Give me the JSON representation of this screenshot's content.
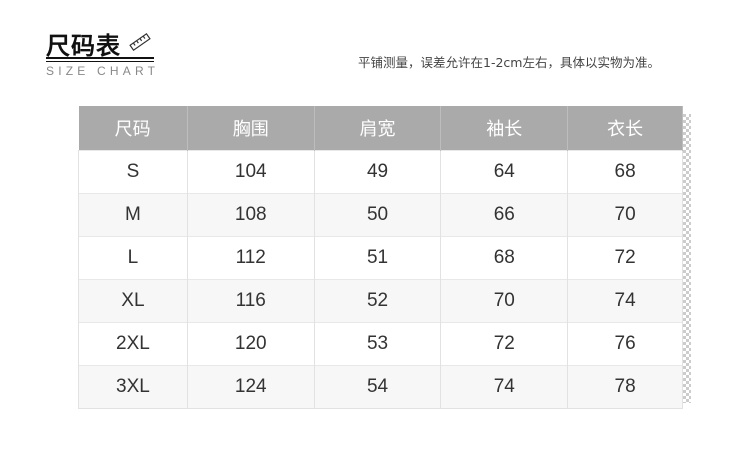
{
  "header": {
    "title": "尺码表",
    "subtitle": "SIZE CHART",
    "ruler_icon": "ruler-icon",
    "note": "平铺测量，误差允许在1-2cm左右，具体以实物为准。"
  },
  "colors": {
    "header_bg": "#aaaaaa",
    "header_text": "#ffffff",
    "row_alt": "#f7f7f7"
  },
  "table": {
    "columns": [
      "尺码",
      "胸围",
      "肩宽",
      "袖长",
      "衣长"
    ],
    "rows": [
      [
        "S",
        "104",
        "49",
        "64",
        "68"
      ],
      [
        "M",
        "108",
        "50",
        "66",
        "70"
      ],
      [
        "L",
        "112",
        "51",
        "68",
        "72"
      ],
      [
        "XL",
        "116",
        "52",
        "70",
        "74"
      ],
      [
        "2XL",
        "120",
        "53",
        "72",
        "76"
      ],
      [
        "3XL",
        "124",
        "54",
        "74",
        "78"
      ]
    ]
  }
}
